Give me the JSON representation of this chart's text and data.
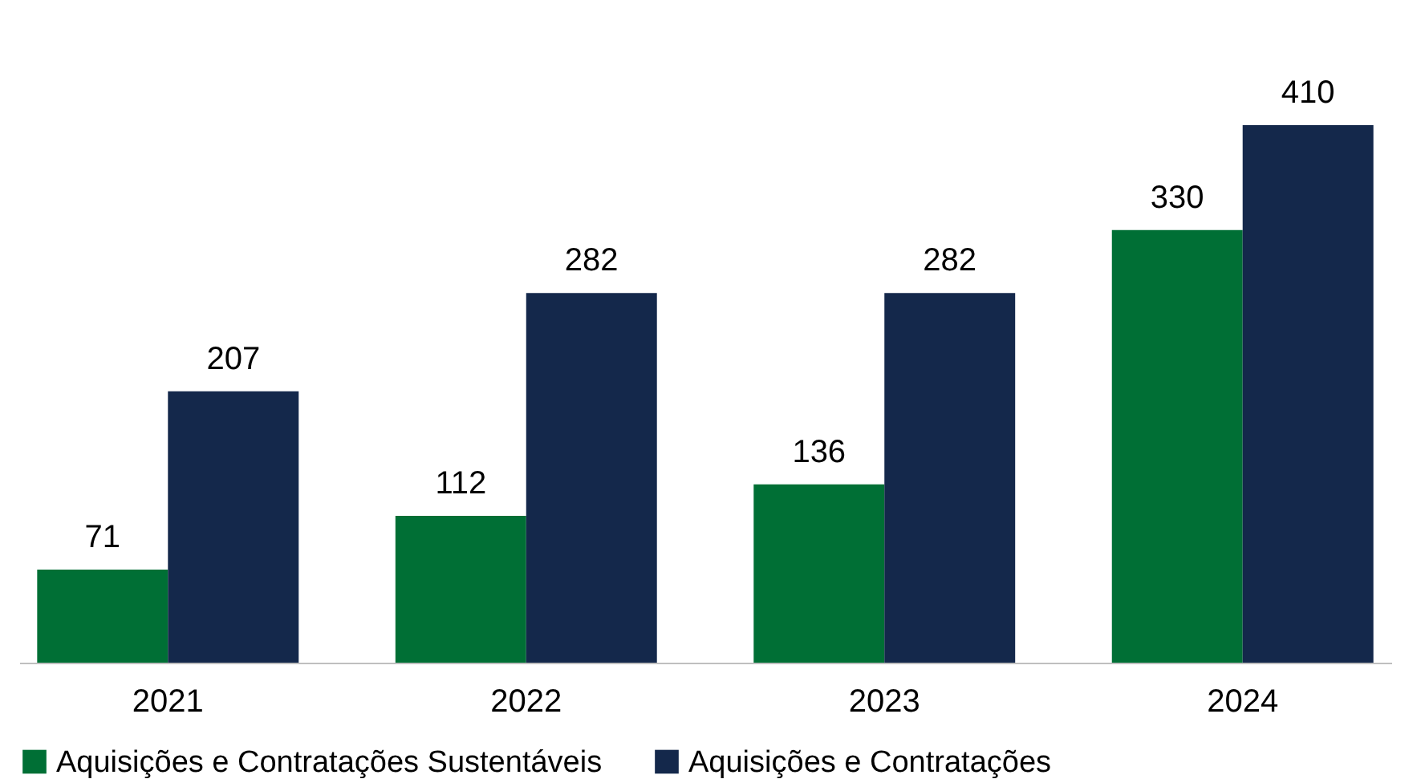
{
  "chart_data": {
    "type": "bar",
    "categories": [
      "2021",
      "2022",
      "2023",
      "2024"
    ],
    "series": [
      {
        "name": "Aquisições e Contratações Sustentáveis",
        "color": "#006f35",
        "values": [
          71,
          112,
          136,
          330
        ]
      },
      {
        "name": "Aquisições e Contratações",
        "color": "#14284b",
        "values": [
          207,
          282,
          282,
          410
        ]
      }
    ],
    "data_labels": true,
    "legend": "bottom"
  }
}
